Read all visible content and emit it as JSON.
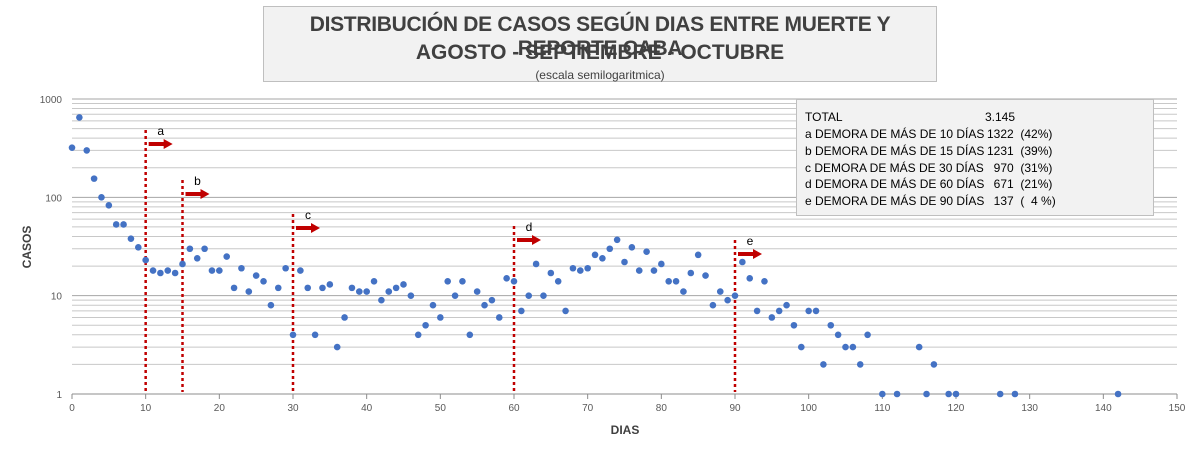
{
  "title": {
    "line1": "DISTRIBUCIÓN DE CASOS SEGÚN DIAS ENTRE MUERTE Y REPORTE CABA",
    "line2": "AGOSTO - SEPTIEMBRE - OCTUBRE",
    "line3": "(escala semilogaritmica)"
  },
  "summary": {
    "total_label": "TOTAL",
    "total_value": "3.145",
    "rows": [
      {
        "label": "a DEMORA DE MÁS DE 10 DÍAS",
        "value": "1322  (42%)"
      },
      {
        "label": "b DEMORA DE MÁS DE 15 DÍAS",
        "value": "1231  (39%)"
      },
      {
        "label": "c DEMORA DE MÁS DE 30 DÍAS",
        "value": "  970  (31%)"
      },
      {
        "label": "d DEMORA DE MÁS DE 60 DÍAS",
        "value": "  671  (21%)"
      },
      {
        "label": "e DEMORA DE MÁS DE 90 DÍAS",
        "value": "  137  (  4 %)"
      }
    ]
  },
  "chart_data": {
    "type": "scatter",
    "xlabel": "DIAS",
    "ylabel": "CASOS",
    "xlim": [
      0,
      150
    ],
    "ylim": [
      1,
      1000
    ],
    "yscale": "log",
    "x_ticks": [
      0,
      10,
      20,
      30,
      40,
      50,
      60,
      70,
      80,
      90,
      100,
      110,
      120,
      130,
      140,
      150
    ],
    "y_ticks": [
      1,
      10,
      100,
      1000
    ],
    "grid": "horizontal",
    "point_color": "#4472c4",
    "marker_color": "#c00000",
    "markers": [
      {
        "label": "a",
        "x": 10
      },
      {
        "label": "b",
        "x": 15
      },
      {
        "label": "c",
        "x": 30
      },
      {
        "label": "d",
        "x": 60
      },
      {
        "label": "e",
        "x": 90
      }
    ],
    "points": [
      [
        0,
        320
      ],
      [
        1,
        650
      ],
      [
        2,
        300
      ],
      [
        3,
        155
      ],
      [
        4,
        100
      ],
      [
        5,
        83
      ],
      [
        6,
        53
      ],
      [
        7,
        53
      ],
      [
        8,
        38
      ],
      [
        9,
        31
      ],
      [
        10,
        23
      ],
      [
        11,
        18
      ],
      [
        12,
        17
      ],
      [
        13,
        18
      ],
      [
        14,
        17
      ],
      [
        15,
        21
      ],
      [
        16,
        30
      ],
      [
        17,
        24
      ],
      [
        18,
        30
      ],
      [
        19,
        18
      ],
      [
        20,
        18
      ],
      [
        21,
        25
      ],
      [
        22,
        12
      ],
      [
        23,
        19
      ],
      [
        24,
        11
      ],
      [
        25,
        16
      ],
      [
        26,
        14
      ],
      [
        27,
        8
      ],
      [
        28,
        12
      ],
      [
        29,
        19
      ],
      [
        30,
        4
      ],
      [
        31,
        18
      ],
      [
        32,
        12
      ],
      [
        33,
        4
      ],
      [
        34,
        12
      ],
      [
        35,
        13
      ],
      [
        36,
        3
      ],
      [
        37,
        6
      ],
      [
        38,
        12
      ],
      [
        39,
        11
      ],
      [
        40,
        11
      ],
      [
        41,
        14
      ],
      [
        42,
        9
      ],
      [
        43,
        11
      ],
      [
        44,
        12
      ],
      [
        45,
        13
      ],
      [
        46,
        10
      ],
      [
        47,
        4
      ],
      [
        48,
        5
      ],
      [
        49,
        8
      ],
      [
        50,
        6
      ],
      [
        51,
        14
      ],
      [
        52,
        10
      ],
      [
        53,
        14
      ],
      [
        54,
        4
      ],
      [
        55,
        11
      ],
      [
        56,
        8
      ],
      [
        57,
        9
      ],
      [
        58,
        6
      ],
      [
        59,
        15
      ],
      [
        60,
        14
      ],
      [
        61,
        7
      ],
      [
        62,
        10
      ],
      [
        63,
        21
      ],
      [
        64,
        10
      ],
      [
        65,
        17
      ],
      [
        66,
        14
      ],
      [
        67,
        7
      ],
      [
        68,
        19
      ],
      [
        69,
        18
      ],
      [
        70,
        19
      ],
      [
        71,
        26
      ],
      [
        72,
        24
      ],
      [
        73,
        30
      ],
      [
        74,
        37
      ],
      [
        75,
        22
      ],
      [
        76,
        31
      ],
      [
        77,
        18
      ],
      [
        78,
        28
      ],
      [
        79,
        18
      ],
      [
        80,
        21
      ],
      [
        81,
        14
      ],
      [
        82,
        14
      ],
      [
        83,
        11
      ],
      [
        84,
        17
      ],
      [
        85,
        26
      ],
      [
        86,
        16
      ],
      [
        87,
        8
      ],
      [
        88,
        11
      ],
      [
        89,
        9
      ],
      [
        90,
        10
      ],
      [
        91,
        22
      ],
      [
        92,
        15
      ],
      [
        93,
        7
      ],
      [
        94,
        14
      ],
      [
        95,
        6
      ],
      [
        96,
        7
      ],
      [
        97,
        8
      ],
      [
        98,
        5
      ],
      [
        99,
        3
      ],
      [
        100,
        7
      ],
      [
        101,
        7
      ],
      [
        102,
        2
      ],
      [
        103,
        5
      ],
      [
        104,
        4
      ],
      [
        105,
        3
      ],
      [
        106,
        3
      ],
      [
        107,
        2
      ],
      [
        108,
        4
      ],
      [
        110,
        1
      ],
      [
        112,
        1
      ],
      [
        115,
        3
      ],
      [
        116,
        1
      ],
      [
        117,
        2
      ],
      [
        119,
        1
      ],
      [
        120,
        1
      ],
      [
        126,
        1
      ],
      [
        128,
        1
      ],
      [
        142,
        1
      ]
    ]
  }
}
